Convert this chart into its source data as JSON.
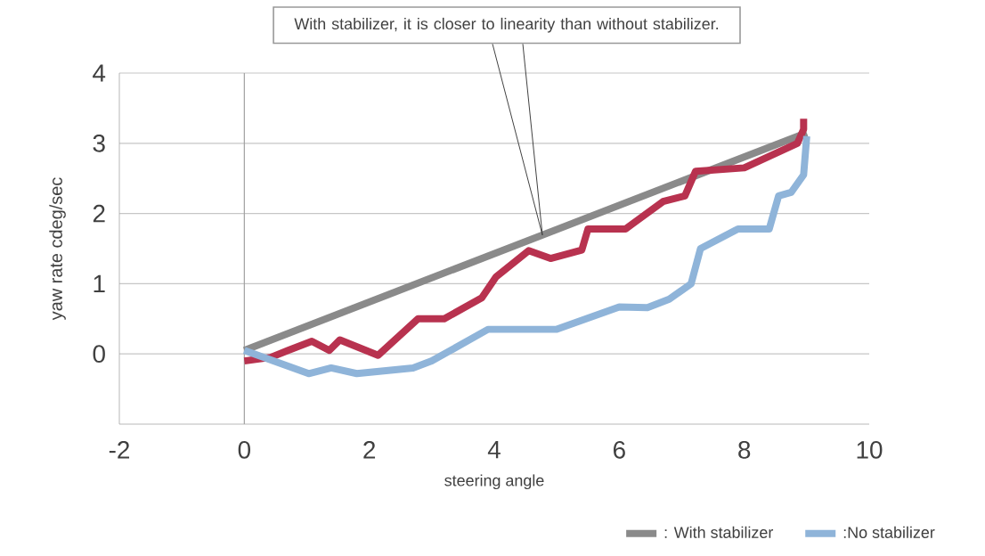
{
  "chart_data": {
    "type": "line",
    "xlabel": "steering angle",
    "ylabel": "yaw rate cdeg/sec",
    "xlim": [
      -2,
      10
    ],
    "ylim": [
      -1,
      4
    ],
    "xticks": [
      -2,
      0,
      2,
      4,
      6,
      8,
      10
    ],
    "yticks": [
      0,
      1,
      2,
      3,
      4
    ],
    "grid": "y",
    "legend": "bottom right",
    "ref_lines": [
      {
        "axis": "x",
        "value": 0,
        "color": "#a0a0a0"
      }
    ],
    "annotations": [
      "With stabilizer, it is closer to linearity than without stabilizer."
    ],
    "series": [
      {
        "name": ": With stabilizer",
        "color": "#8a8a8a",
        "x": [
          0,
          9
        ],
        "values": [
          0.05,
          3.15
        ]
      },
      {
        "color": "#b8324f",
        "x": [
          0,
          0.42,
          0.7,
          1.08,
          1.36,
          1.53,
          2.14,
          2.78,
          3.2,
          3.8,
          4.03,
          4.55,
          4.9,
          5.4,
          5.5,
          6.1,
          6.7,
          7.05,
          7.22,
          8.0,
          8.85,
          8.95,
          8.95
        ],
        "values": [
          -0.1,
          -0.05,
          0.05,
          0.18,
          0.05,
          0.2,
          -0.02,
          0.5,
          0.5,
          0.8,
          1.1,
          1.47,
          1.36,
          1.48,
          1.78,
          1.78,
          2.17,
          2.25,
          2.6,
          2.65,
          3.0,
          3.2,
          3.35
        ]
      },
      {
        "name": ":No stabilizer",
        "color": "#8fb4d9",
        "x": [
          0,
          1.03,
          1.39,
          1.8,
          2.7,
          3.0,
          3.9,
          5.0,
          6.0,
          6.45,
          6.8,
          7.15,
          7.3,
          7.9,
          8.4,
          8.55,
          8.75,
          8.95,
          9.0
        ],
        "values": [
          0.05,
          -0.28,
          -0.2,
          -0.28,
          -0.2,
          -0.1,
          0.35,
          0.35,
          0.67,
          0.66,
          0.78,
          1.0,
          1.5,
          1.78,
          1.78,
          2.25,
          2.3,
          2.55,
          3.1
        ]
      }
    ]
  }
}
